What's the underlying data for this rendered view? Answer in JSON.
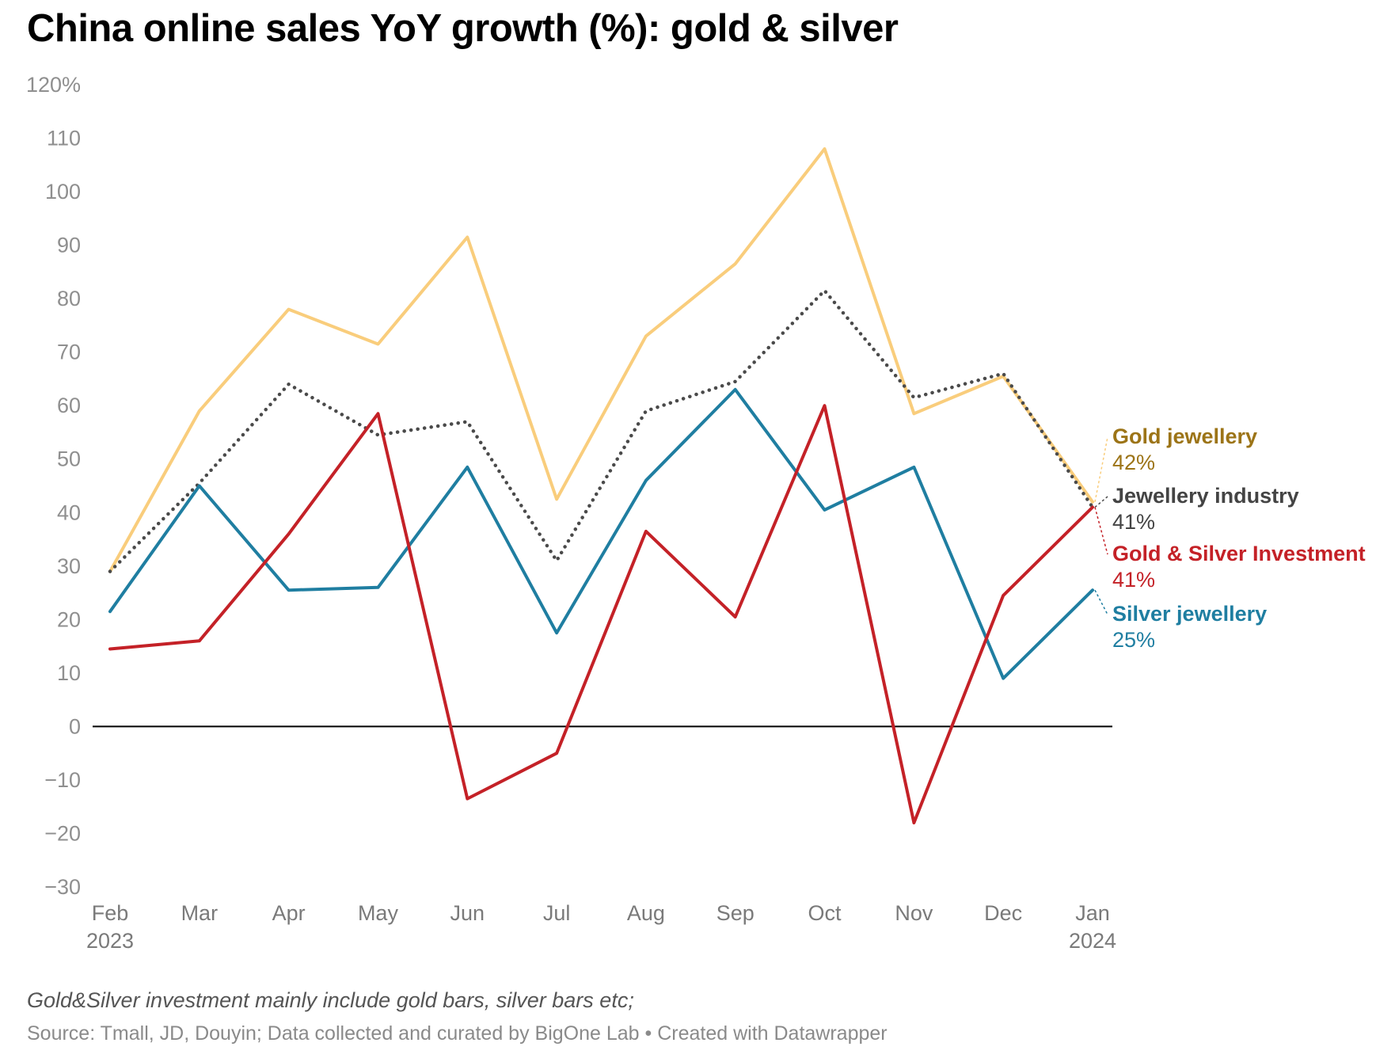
{
  "title": "China online sales YoY growth (%): gold & silver",
  "note": "Gold&Silver investment mainly include gold bars, silver bars etc;",
  "source": "Source: Tmall, JD, Douyin; Data collected and curated by BigOne Lab • Created with Datawrapper",
  "chart_data": {
    "type": "line",
    "title": "China online sales YoY growth (%): gold & silver",
    "xlabel": "",
    "ylabel": "",
    "ylim": [
      -30,
      120
    ],
    "yticks": [
      -30,
      -20,
      -10,
      0,
      10,
      20,
      30,
      40,
      50,
      60,
      70,
      80,
      90,
      100,
      110,
      120
    ],
    "ytick_labels": [
      "−30",
      "−20",
      "−10",
      "0",
      "10",
      "20",
      "30",
      "40",
      "50",
      "60",
      "70",
      "80",
      "90",
      "100",
      "110",
      "120%"
    ],
    "categories": [
      "Feb",
      "Mar",
      "Apr",
      "May",
      "Jun",
      "Jul",
      "Aug",
      "Sep",
      "Oct",
      "Nov",
      "Dec",
      "Jan"
    ],
    "category_sublabels": [
      "2023",
      "",
      "",
      "",
      "",
      "",
      "",
      "",
      "",
      "",
      "",
      "2024"
    ],
    "grid": false,
    "zero_line": true,
    "legend": "direct labels at right end of lines",
    "series": [
      {
        "name": "Gold jewellery",
        "end_label": "42%",
        "color": "#f9cd7c",
        "label_color": "#9c7417",
        "style": "solid",
        "values": [
          29,
          59,
          78,
          71.5,
          91.5,
          42.5,
          73,
          86.5,
          108,
          58.5,
          65.5,
          42
        ]
      },
      {
        "name": "Jewellery industry",
        "end_label": "41%",
        "color": "#4a4a4a",
        "label_color": "#444444",
        "style": "dotted",
        "values": [
          29,
          45.5,
          64,
          54.5,
          57,
          31,
          59,
          64.5,
          81.5,
          61.5,
          66,
          41
        ]
      },
      {
        "name": "Gold & Silver Investment",
        "end_label": "41%",
        "color": "#c42127",
        "label_color": "#c42127",
        "style": "solid",
        "values": [
          14.5,
          16,
          36,
          58.5,
          -13.5,
          -5,
          36.5,
          20.5,
          60,
          -18,
          24.5,
          41
        ]
      },
      {
        "name": "Silver jewellery",
        "end_label": "25%",
        "color": "#1f7ea1",
        "label_color": "#1f7ea1",
        "style": "solid",
        "values": [
          21.5,
          45,
          25.5,
          26,
          48.5,
          17.5,
          46,
          63,
          40.5,
          48.5,
          9,
          25.5
        ]
      }
    ]
  }
}
